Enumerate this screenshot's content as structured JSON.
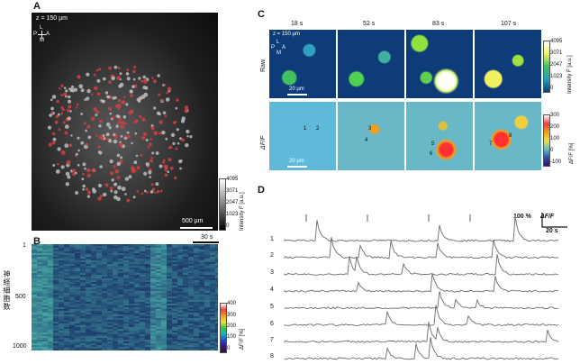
{
  "panels": {
    "a": {
      "letter": "A",
      "depth": "z = 150 µm",
      "orient": {
        "top": "L",
        "left": "P",
        "right": "A",
        "bottom": "M"
      },
      "scalebar": "500 µm",
      "colorbar": {
        "ticks": [
          "4095",
          "3071",
          "2047",
          "1023",
          "0"
        ],
        "label": "Intensity F [a.u.]"
      }
    },
    "b": {
      "letter": "B",
      "ylabel": "神経細胞数",
      "yticks": [
        "1",
        "500",
        "1000"
      ],
      "timebar": "30 s",
      "colorbar": {
        "ticks": [
          "400",
          "300",
          "200",
          "100",
          "0"
        ],
        "label": "ΔF/F [%]"
      }
    },
    "c": {
      "letter": "C",
      "times": [
        "18 s",
        "52 s",
        "83 s",
        "107 s"
      ],
      "row_raw": "Raw",
      "row_dff": "ΔF/F",
      "depth": "z = 150 µm",
      "orient": {
        "top": "L",
        "left": "P",
        "right": "A",
        "bottom": "M"
      },
      "scalebar_raw": "20 µm",
      "scalebar_dff": "20 µm",
      "cell_labels": [
        "1",
        "2",
        "3",
        "4",
        "5",
        "6",
        "7",
        "8"
      ],
      "colorbar_raw": {
        "ticks": [
          "4095",
          "3071",
          "2047",
          "1023",
          "0"
        ],
        "label": "Intensity F [a.u.]"
      },
      "colorbar_dff": {
        "ticks": [
          "300",
          "200",
          "100",
          "0",
          "-100"
        ],
        "label": "ΔF/F [%]"
      }
    },
    "d": {
      "letter": "D",
      "trace_labels": [
        "1",
        "2",
        "3",
        "4",
        "5",
        "6",
        "7",
        "8"
      ],
      "scale_y": "100 %",
      "scale_y_unit": "ΔF/F",
      "scale_x": "20 s"
    }
  },
  "colors": {
    "trace": "#6b6b6b",
    "cell_marker": "#d04040"
  }
}
